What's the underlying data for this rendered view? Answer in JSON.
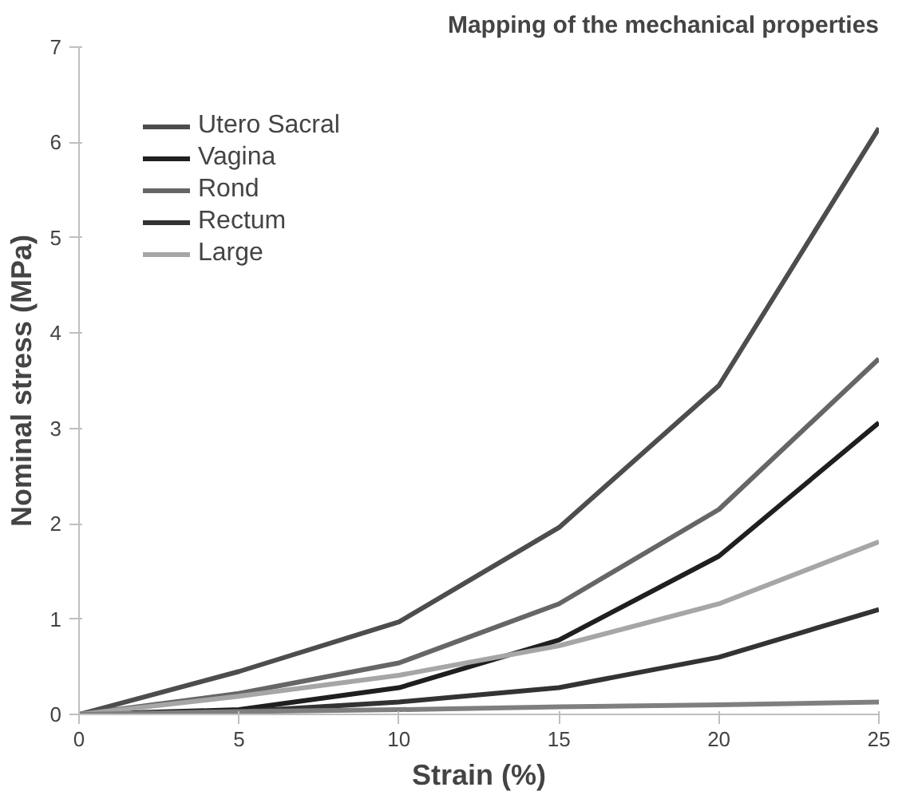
{
  "chart_data": {
    "type": "line",
    "title": "Mapping of the mechanical properties",
    "xlabel": "Strain (%)",
    "ylabel": "Nominal stress (MPa)",
    "x": [
      0,
      5,
      10,
      15,
      20,
      25
    ],
    "series": [
      {
        "name": "Utero Sacral",
        "color": "#4d4d4d",
        "values": [
          0,
          0.45,
          0.97,
          1.96,
          3.45,
          6.15
        ]
      },
      {
        "name": "Vagina",
        "color": "#1f1f1f",
        "values": [
          0,
          0.05,
          0.28,
          0.78,
          1.66,
          3.06
        ]
      },
      {
        "name": "Rond",
        "color": "#666666",
        "values": [
          0,
          0.22,
          0.54,
          1.16,
          2.15,
          3.73
        ]
      },
      {
        "name": "Rectum",
        "color": "#333333",
        "values": [
          0,
          0.03,
          0.13,
          0.28,
          0.6,
          1.1
        ]
      },
      {
        "name": "Large",
        "color": "#a6a6a6",
        "values": [
          0,
          0.19,
          0.41,
          0.72,
          1.16,
          1.81
        ]
      },
      {
        "color": "#7f7f7f",
        "values": [
          0,
          0.03,
          0.05,
          0.08,
          0.1,
          0.13
        ]
      }
    ],
    "xlim": [
      0,
      25
    ],
    "ylim": [
      0,
      7
    ],
    "xticks": [
      0,
      5,
      10,
      15,
      20,
      25
    ],
    "yticks": [
      0,
      1,
      2,
      3,
      4,
      5,
      6,
      7
    ],
    "grid": false,
    "legend": "top left",
    "marker": "none",
    "line_style": "solid"
  }
}
